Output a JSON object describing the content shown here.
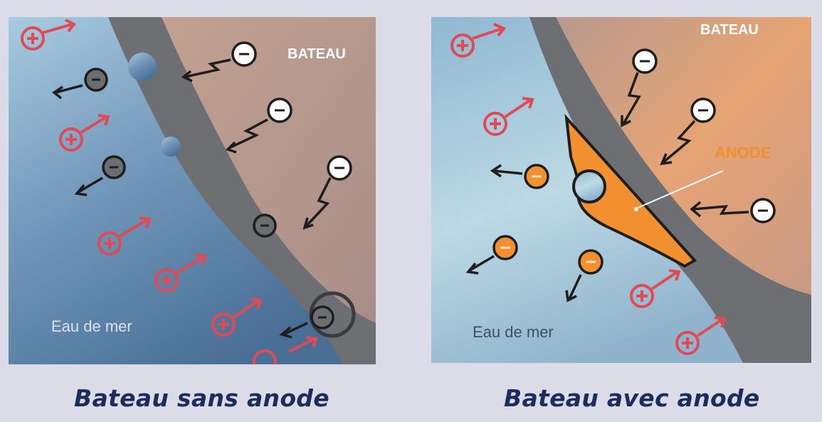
{
  "colors": {
    "page_background": "#dcdce8",
    "caption": "#1c2c5c",
    "hull": "#6e6f73",
    "boat_interior": "#b89a8e",
    "boat_interior_warm": "#e0a275",
    "water_light": "#9dc4d9",
    "water_dark": "#4a6f97",
    "positive_ion": "#e04a55",
    "electron": "#ffffff",
    "metal_ion": "#6b6d70",
    "anode": "#f2902f",
    "anode_ion": "#f2902f"
  },
  "icons": {
    "positive_ion": "plus-circle-arrow-icon",
    "electron": "minus-circle-icon",
    "metal_ion": "minus-circle-icon",
    "arrow": "arrow-icon",
    "zigzag": "lightning-arrow-icon"
  },
  "left": {
    "boat_label": "BATEAU",
    "water_label": "Eau de mer",
    "caption": "Bateau sans anode"
  },
  "right": {
    "boat_label": "BATEAU",
    "water_label": "Eau de mer",
    "anode_label": "ANODE",
    "caption": "Bateau avec anode"
  }
}
